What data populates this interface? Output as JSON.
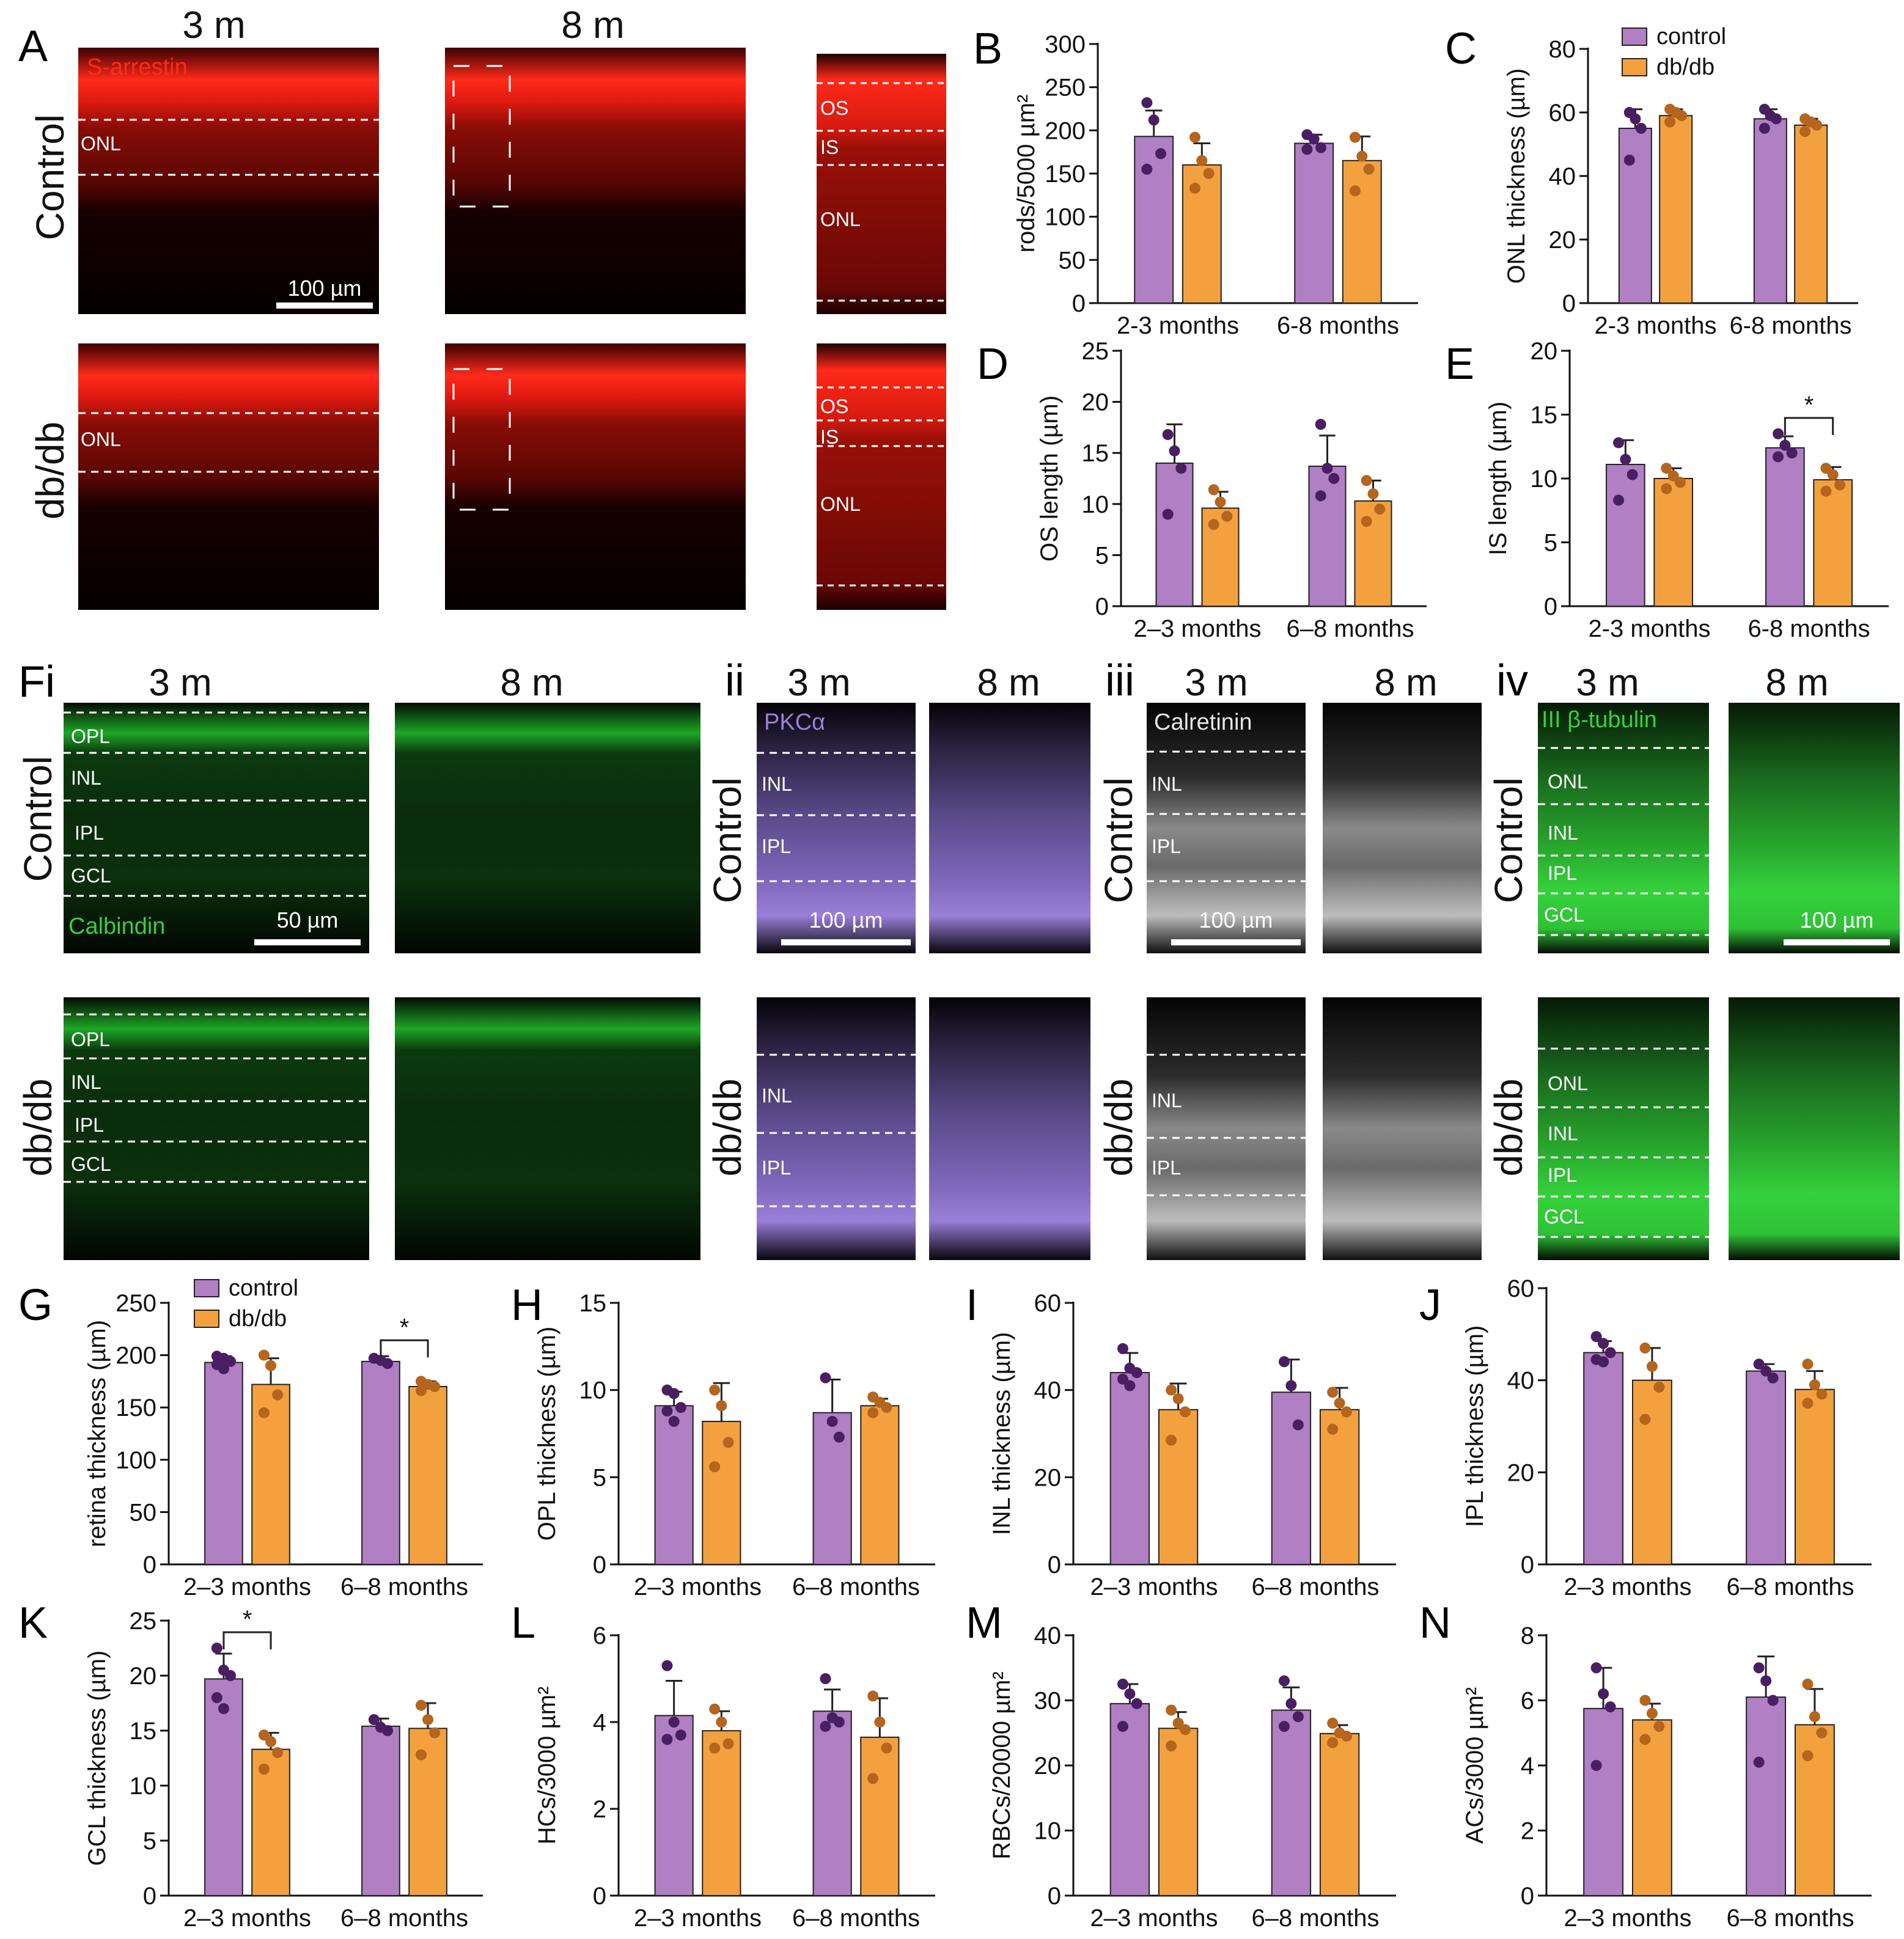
{
  "colors": {
    "control": "#b07fc4",
    "control_dot": "#4a1e63",
    "dbdb": "#f3a13f",
    "dbdb_dot": "#b5651d",
    "red_stain": "#ff2a1a",
    "green_stain": "#35d13c",
    "purple_stain": "#9a7fd8",
    "white_stain": "#e6e6e6"
  },
  "legend": {
    "control": "control",
    "dbdb": "db/db"
  },
  "micrographs": {
    "A": {
      "letter": "A",
      "col_3m": "3 m",
      "col_8m": "8 m",
      "row_control": "Control",
      "row_dbdb": "db/db",
      "stain": "S-arrestin",
      "onl": "ONL",
      "os": "OS",
      "is": "IS",
      "scale": "100 µm"
    },
    "F": {
      "letter": "Fi",
      "sub_ii": "ii",
      "sub_iii": "iii",
      "sub_iv": "iv",
      "m3": "3 m",
      "m8": "8 m",
      "row_control": "Control",
      "row_dbdb": "db/db",
      "calbindin": "Calbindin",
      "pkc": "PKCα",
      "calretinin": "Calretinin",
      "tubulin": "III β-tubulin",
      "opl": "OPL",
      "inl": "INL",
      "ipl": "IPL",
      "gcl": "GCL",
      "onl": "ONL",
      "scale_50": "50 µm",
      "scale_100": "100 µm"
    }
  },
  "chart_data": [
    {
      "panel": "B",
      "type": "bar",
      "ylabel": "rods/5000 µm²",
      "ylim": [
        0,
        300
      ],
      "ticks": [
        0,
        50,
        100,
        150,
        200,
        250,
        300
      ],
      "categories": [
        "2-3 months",
        "6-8 months"
      ],
      "series": [
        {
          "name": "control",
          "values": [
            193,
            185
          ],
          "sd": [
            30,
            10
          ],
          "points": [
            [
              232,
              212,
              173,
              155
            ],
            [
              195,
              190,
              180,
              178
            ]
          ]
        },
        {
          "name": "db/db",
          "values": [
            160,
            165
          ],
          "sd": [
            25,
            28
          ],
          "points": [
            [
              192,
              165,
              150,
              133
            ],
            [
              192,
              170,
              155,
              130
            ]
          ]
        }
      ],
      "sig": null
    },
    {
      "panel": "C",
      "type": "bar",
      "ylabel": "ONL thickness (µm)",
      "ylim": [
        0,
        80
      ],
      "ticks": [
        0,
        20,
        40,
        60,
        80
      ],
      "categories": [
        "2-3 months",
        "6-8 months"
      ],
      "series": [
        {
          "name": "control",
          "values": [
            55,
            58
          ],
          "sd": [
            6,
            3
          ],
          "points": [
            [
              60,
              58,
              55,
              45
            ],
            [
              61,
              59,
              58,
              55
            ]
          ]
        },
        {
          "name": "db/db",
          "values": [
            59,
            56
          ],
          "sd": [
            2,
            2
          ],
          "points": [
            [
              61,
              60,
              59,
              57
            ],
            [
              58,
              57,
              56,
              54
            ]
          ]
        }
      ],
      "sig": null
    },
    {
      "panel": "D",
      "type": "bar",
      "ylabel": "OS length (µm)",
      "ylim": [
        0,
        25
      ],
      "ticks": [
        0,
        5,
        10,
        15,
        20,
        25
      ],
      "categories": [
        "2–3 months",
        "6–8 months"
      ],
      "series": [
        {
          "name": "control",
          "values": [
            14,
            13.7
          ],
          "sd": [
            3.8,
            3.0
          ],
          "points": [
            [
              16.8,
              15.2,
              13.5,
              9.0
            ],
            [
              17.8,
              13.5,
              12.5,
              10.8
            ]
          ]
        },
        {
          "name": "db/db",
          "values": [
            9.6,
            10.3
          ],
          "sd": [
            1.6,
            2.0
          ],
          "points": [
            [
              11.4,
              10.2,
              8.8,
              8.0
            ],
            [
              12.3,
              11.0,
              9.5,
              8.3
            ]
          ]
        }
      ],
      "sig": null
    },
    {
      "panel": "E",
      "type": "bar",
      "ylabel": "IS length (µm)",
      "ylim": [
        0,
        20
      ],
      "ticks": [
        0,
        5,
        10,
        15,
        20
      ],
      "categories": [
        "2-3 months",
        "6-8 months"
      ],
      "series": [
        {
          "name": "control",
          "values": [
            11.1,
            12.4
          ],
          "sd": [
            1.9,
            0.9
          ],
          "points": [
            [
              12.8,
              11.5,
              10.3,
              8.3
            ],
            [
              13.5,
              12.6,
              12.0,
              11.7
            ]
          ]
        },
        {
          "name": "db/db",
          "values": [
            10.0,
            9.9
          ],
          "sd": [
            0.8,
            1.0
          ],
          "points": [
            [
              10.8,
              10.2,
              9.7,
              9.2
            ],
            [
              10.8,
              10.3,
              9.5,
              9.0
            ]
          ]
        }
      ],
      "sig": {
        "group": 1,
        "label": "*"
      }
    },
    {
      "panel": "G",
      "type": "bar",
      "ylabel": "retina thickness (µm)",
      "ylim": [
        0,
        250
      ],
      "ticks": [
        0,
        50,
        100,
        150,
        200,
        250
      ],
      "categories": [
        "2–3 months",
        "6–8 months"
      ],
      "series": [
        {
          "name": "control",
          "values": [
            193,
            194
          ],
          "sd": [
            6,
            5
          ],
          "points": [
            [
              199,
              197,
              194,
              191,
              187
            ],
            [
              197,
              195,
              192
            ]
          ]
        },
        {
          "name": "db/db",
          "values": [
            172,
            170
          ],
          "sd": [
            25,
            5
          ],
          "points": [
            [
              200,
              190,
              162,
              145
            ],
            [
              175,
              172,
              170,
              166
            ]
          ]
        }
      ],
      "sig": {
        "group": 1,
        "label": "*"
      }
    },
    {
      "panel": "H",
      "type": "bar",
      "ylabel": "OPL thickness (µm)",
      "ylim": [
        0,
        15
      ],
      "ticks": [
        0,
        5,
        10,
        15
      ],
      "categories": [
        "2–3 months",
        "6–8 months"
      ],
      "series": [
        {
          "name": "control",
          "values": [
            9.1,
            8.7
          ],
          "sd": [
            0.8,
            1.9
          ],
          "points": [
            [
              10.0,
              9.8,
              9.0,
              8.8,
              8.2
            ],
            [
              10.7,
              8.2,
              7.3
            ]
          ]
        },
        {
          "name": "db/db",
          "values": [
            8.2,
            9.1
          ],
          "sd": [
            2.2,
            0.4
          ],
          "points": [
            [
              10.0,
              9.1,
              7.0,
              5.6
            ],
            [
              9.6,
              9.3,
              9.0,
              8.7
            ]
          ]
        }
      ],
      "sig": null
    },
    {
      "panel": "I",
      "type": "bar",
      "ylabel": "INL thickness (µm)",
      "ylim": [
        0,
        60
      ],
      "ticks": [
        0,
        20,
        40,
        60
      ],
      "categories": [
        "2–3 months",
        "6–8 months"
      ],
      "series": [
        {
          "name": "control",
          "values": [
            44,
            39.5
          ],
          "sd": [
            4.5,
            7.5
          ],
          "points": [
            [
              49.5,
              45,
              44,
              42.5,
              41
            ],
            [
              46.5,
              41,
              32
            ]
          ]
        },
        {
          "name": "db/db",
          "values": [
            35.5,
            35.5
          ],
          "sd": [
            6,
            5
          ],
          "points": [
            [
              40,
              38,
              35,
              28.5
            ],
            [
              39.5,
              37,
              35,
              31
            ]
          ]
        }
      ],
      "sig": null
    },
    {
      "panel": "J",
      "type": "bar",
      "ylabel": "IPL thickness (µm)",
      "ylim": [
        0,
        60
      ],
      "ticks": [
        0,
        20,
        40,
        60
      ],
      "categories": [
        "2–3 months",
        "6–8 months"
      ],
      "series": [
        {
          "name": "control",
          "values": [
            46,
            42
          ],
          "sd": [
            2.5,
            1.5
          ],
          "points": [
            [
              49.5,
              48,
              46,
              44.5,
              44
            ],
            [
              43.5,
              42,
              40.5
            ]
          ]
        },
        {
          "name": "db/db",
          "values": [
            40,
            38
          ],
          "sd": [
            7,
            4
          ],
          "points": [
            [
              47,
              43,
              38.5,
              31.5
            ],
            [
              43.5,
              39,
              37,
              35
            ]
          ]
        }
      ],
      "sig": null
    },
    {
      "panel": "K",
      "type": "bar",
      "ylabel": "GCL thickness (µm)",
      "ylim": [
        0,
        25
      ],
      "ticks": [
        0,
        5,
        10,
        15,
        20,
        25
      ],
      "categories": [
        "2–3 months",
        "6–8 months"
      ],
      "series": [
        {
          "name": "control",
          "values": [
            19.7,
            15.4
          ],
          "sd": [
            2.3,
            0.7
          ],
          "points": [
            [
              22.5,
              20.5,
              20,
              18,
              17
            ],
            [
              16,
              15.3,
              15
            ]
          ]
        },
        {
          "name": "db/db",
          "values": [
            13.3,
            15.2
          ],
          "sd": [
            1.5,
            2.3
          ],
          "points": [
            [
              14.6,
              14,
              13,
              11.5
            ],
            [
              17.3,
              16,
              14.8,
              12.8
            ]
          ]
        }
      ],
      "sig": {
        "group": 0,
        "label": "*"
      }
    },
    {
      "panel": "L",
      "type": "bar",
      "ylabel": "HCs/3000 µm²",
      "ylim": [
        0,
        6
      ],
      "ticks": [
        0,
        2,
        4,
        6
      ],
      "categories": [
        "2–3 months",
        "6–8 months"
      ],
      "series": [
        {
          "name": "control",
          "values": [
            4.15,
            4.25
          ],
          "sd": [
            0.8,
            0.5
          ],
          "points": [
            [
              5.3,
              4.0,
              3.7,
              3.6
            ],
            [
              5.0,
              4.1,
              4.0,
              3.9
            ]
          ]
        },
        {
          "name": "db/db",
          "values": [
            3.8,
            3.65
          ],
          "sd": [
            0.45,
            0.9
          ],
          "points": [
            [
              4.3,
              4.0,
              3.5,
              3.4
            ],
            [
              4.6,
              4.0,
              3.4,
              2.7
            ]
          ]
        }
      ],
      "sig": null
    },
    {
      "panel": "M",
      "type": "bar",
      "ylabel": "RBCs/20000 µm²",
      "ylim": [
        0,
        40
      ],
      "ticks": [
        0,
        10,
        20,
        30,
        40
      ],
      "categories": [
        "2–3 months",
        "6–8 months"
      ],
      "series": [
        {
          "name": "control",
          "values": [
            29.5,
            28.5
          ],
          "sd": [
            3,
            3.5
          ],
          "points": [
            [
              32.5,
              31,
              29.5,
              26
            ],
            [
              33,
              29.5,
              27.5,
              26
            ]
          ]
        },
        {
          "name": "db/db",
          "values": [
            25.7,
            24.9
          ],
          "sd": [
            2.5,
            1.3
          ],
          "points": [
            [
              28.5,
              26.5,
              25.5,
              23
            ],
            [
              26.5,
              25,
              24.5,
              23.5
            ]
          ]
        }
      ],
      "sig": null
    },
    {
      "panel": "N",
      "type": "bar",
      "ylabel": "ACs/3000 µm²",
      "ylim": [
        0,
        8
      ],
      "ticks": [
        0,
        2,
        4,
        6,
        8
      ],
      "categories": [
        "2–3 months",
        "6–8 months"
      ],
      "series": [
        {
          "name": "control",
          "values": [
            5.75,
            6.1
          ],
          "sd": [
            1.25,
            1.25
          ],
          "points": [
            [
              7.0,
              6.2,
              5.8,
              4.0
            ],
            [
              7.0,
              6.6,
              6.0,
              4.1
            ]
          ]
        },
        {
          "name": "db/db",
          "values": [
            5.4,
            5.25
          ],
          "sd": [
            0.5,
            1.1
          ],
          "points": [
            [
              6.0,
              5.6,
              5.2,
              4.8
            ],
            [
              6.5,
              5.5,
              5.0,
              4.3
            ]
          ]
        }
      ],
      "sig": null
    }
  ]
}
